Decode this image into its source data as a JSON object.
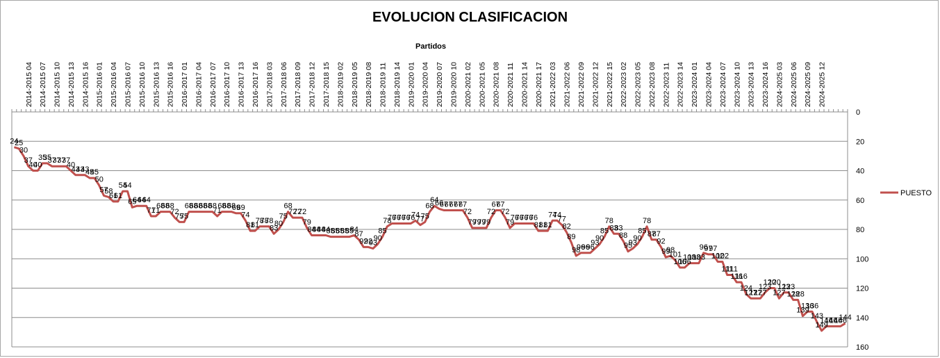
{
  "chart_data": {
    "type": "line",
    "title": "EVOLUCION CLASIFICACION",
    "xlabel": "Partidos",
    "ylabel": "",
    "ylim": [
      0,
      160
    ],
    "y_reversed": true,
    "y_ticks": [
      0,
      20,
      40,
      60,
      80,
      100,
      120,
      140,
      160
    ],
    "grid": "horizontal",
    "legend_position": "right",
    "x_tick_labels": [
      "2014-2015 04",
      "2014-2015 07",
      "2014-2015 10",
      "2014-2015 13",
      "2014-2015 16",
      "2015-2016 01",
      "2015-2016 04",
      "2015-2016 07",
      "2015-2016 10",
      "2015-2016 13",
      "2015-2016 16",
      "2016-2017 01",
      "2016-2017 04",
      "2016-2017 07",
      "2016-2017 10",
      "2016-2017 13",
      "2016-2017 16",
      "2017-2018 03",
      "2017-2018 06",
      "2017-2018 09",
      "2017-2018 12",
      "2017-2018 15",
      "2018-2019 02",
      "2018-2019 05",
      "2018-2019 08",
      "2018-2019 11",
      "2018-2019 14",
      "2019-2020 01",
      "2019-2020 04",
      "2019-2020 07",
      "2019-2020 10",
      "2020-2021 02",
      "2020-2021 05",
      "2020-2021 08",
      "2020-2021 11",
      "2020-2021 14",
      "2020-2021 17",
      "2021-2022 03",
      "2021-2022 06",
      "2021-2022 09",
      "2021-2022 12",
      "2021-2022 15",
      "2022-2023 02",
      "2022-2023 05",
      "2022-2023 08",
      "2022-2023 11",
      "2022-2023 14",
      "2023-2024 01",
      "2023-2024 04",
      "2023-2024 07",
      "2023-2024 10",
      "2023-2024 13",
      "2023-2024 16",
      "2024-2025 03",
      "2024-2025 06",
      "2024-2025 09",
      "2024-2025 12"
    ],
    "series": [
      {
        "name": "PUESTO",
        "color": "#c0504d",
        "values": [
          24,
          25,
          30,
          37,
          40,
          40,
          35,
          35,
          37,
          37,
          37,
          37,
          40,
          43,
          43,
          43,
          45,
          45,
          50,
          57,
          58,
          61,
          61,
          54,
          54,
          65,
          64,
          64,
          64,
          71,
          71,
          68,
          68,
          68,
          72,
          75,
          75,
          68,
          68,
          68,
          68,
          68,
          68,
          71,
          68,
          68,
          68,
          69,
          69,
          74,
          81,
          81,
          78,
          78,
          78,
          83,
          80,
          75,
          68,
          72,
          72,
          72,
          79,
          84,
          84,
          84,
          84,
          85,
          85,
          85,
          85,
          85,
          84,
          87,
          92,
          92,
          93,
          90,
          85,
          78,
          76,
          76,
          76,
          76,
          76,
          74,
          77,
          75,
          68,
          64,
          66,
          67,
          67,
          67,
          67,
          67,
          72,
          79,
          79,
          79,
          79,
          72,
          67,
          67,
          72,
          79,
          76,
          76,
          76,
          76,
          76,
          81,
          81,
          81,
          74,
          74,
          77,
          82,
          89,
          98,
          96,
          96,
          96,
          93,
          90,
          85,
          78,
          83,
          83,
          88,
          95,
          93,
          90,
          85,
          78,
          87,
          87,
          92,
          99,
          98,
          101,
          106,
          106,
          103,
          103,
          103,
          96,
          97,
          97,
          102,
          102,
          111,
          111,
          116,
          116,
          124,
          127,
          127,
          127,
          123,
          120,
          120,
          127,
          123,
          123,
          128,
          128,
          139,
          136,
          136,
          143,
          149,
          146,
          146,
          146,
          146,
          144
        ]
      }
    ]
  }
}
